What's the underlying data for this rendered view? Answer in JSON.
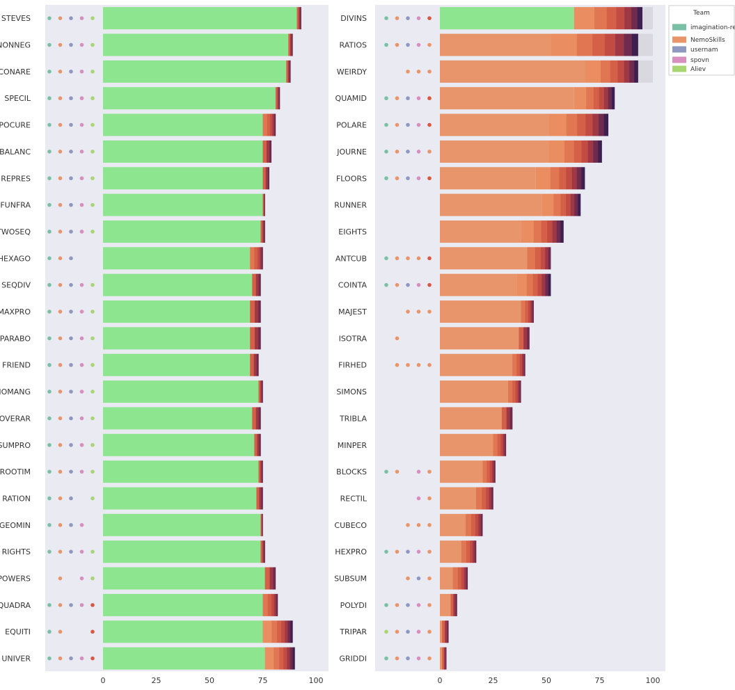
{
  "legend": {
    "title": "Team",
    "entries": [
      {
        "name": "imagination-research",
        "color": "#7bbfa5"
      },
      {
        "name": "NemoSkills",
        "color": "#e8956b"
      },
      {
        "name": "usernam",
        "color": "#8e98c1"
      },
      {
        "name": "spovn",
        "color": "#d78fbf"
      },
      {
        "name": "Aliev",
        "color": "#a8d672"
      }
    ]
  },
  "chart_data": [
    {
      "type": "bar",
      "orientation": "horizontal",
      "stacked": true,
      "xlim": [
        0,
        100
      ],
      "xticks": [
        0,
        25,
        50,
        75,
        100
      ],
      "grid": false,
      "base_color": "#8ee590",
      "categories": [
        "STEVES",
        "NONNEG",
        "CONARE",
        "SPECIL",
        "POCURE",
        "BALANC",
        "REPRES",
        "FUNFRA",
        "TWOSEQ",
        "HEXAGO",
        "SEQDIV",
        "MAXPRO",
        "PARABO",
        "FRIEND",
        "NOMANG",
        "OVERAR",
        "SUMPRO",
        "ROOTIM",
        "RATION",
        "GEOMIN",
        "RIGHTS",
        "POWERS",
        "QUADRA",
        "EQUITI",
        "UNIVER"
      ],
      "base_values": [
        91,
        87,
        86,
        81,
        75,
        75,
        75,
        75,
        74,
        69,
        70,
        69,
        69,
        69,
        73,
        70,
        71,
        73,
        72,
        74,
        74,
        76,
        75,
        75,
        76
      ],
      "totals": [
        93,
        89,
        88,
        83,
        81,
        79,
        78,
        76,
        76,
        75,
        74,
        74,
        74,
        73,
        75,
        74,
        74,
        75,
        75,
        75,
        76,
        81,
        82,
        89,
        90
      ],
      "dots": [
        [
          "g",
          "o",
          "b",
          "p",
          "y"
        ],
        [
          "g",
          "o",
          "b",
          "p",
          "y"
        ],
        [
          "g",
          "o",
          "b",
          "p",
          "y"
        ],
        [
          "g",
          "o",
          "b",
          "p",
          "y"
        ],
        [
          "g",
          "o",
          "b",
          "p",
          "y"
        ],
        [
          "g",
          "o",
          "b",
          "p",
          "y"
        ],
        [
          "g",
          "o",
          "b",
          "p",
          "y"
        ],
        [
          "g",
          "o",
          "b",
          "p",
          "y"
        ],
        [
          "g",
          "o",
          "b",
          "p",
          "y"
        ],
        [
          "g",
          "o",
          "b"
        ],
        [
          "g",
          "o",
          "b",
          "p",
          "y"
        ],
        [
          "g",
          "o",
          "b",
          "p",
          "y"
        ],
        [
          "g",
          "o",
          "b",
          "p",
          "y"
        ],
        [
          "g",
          "o",
          "b",
          "p",
          "y"
        ],
        [
          "g",
          "o",
          "b",
          "p",
          "y"
        ],
        [
          "g",
          "o",
          "b",
          "p",
          "y"
        ],
        [
          "g",
          "o",
          "b",
          "p",
          "y"
        ],
        [
          "g",
          "o",
          "b",
          "p",
          "y"
        ],
        [
          "g",
          "o",
          "b",
          "",
          "y"
        ],
        [
          "g",
          "o",
          "b",
          "p"
        ],
        [
          "g",
          "o",
          "b",
          "p",
          "y"
        ],
        [
          "",
          "o",
          "",
          "p",
          "y"
        ],
        [
          "g",
          "o",
          "b",
          "p",
          "r"
        ],
        [
          "g",
          "o",
          "",
          "",
          "r"
        ],
        [
          "g",
          "o",
          "b",
          "p",
          "r"
        ]
      ]
    },
    {
      "type": "bar",
      "orientation": "horizontal",
      "stacked": true,
      "xlim": [
        0,
        100
      ],
      "xticks": [
        0,
        25,
        50,
        75,
        100
      ],
      "grid": false,
      "base_color": "#e8956b",
      "first_bar_base_color": "#8ee590",
      "categories": [
        "DIVINS",
        "RATIOS",
        "WEIRDY",
        "QUAMID",
        "POLARE",
        "JOURNE",
        "FLOORS",
        "RUNNER",
        "EIGHTS",
        "ANTCUB",
        "COINTA",
        "MAJEST",
        "ISOTRA",
        "FIRHED",
        "SIMONS",
        "TRIBLA",
        "MINPER",
        "BLOCKS",
        "RECTIL",
        "CUBECO",
        "HEXPRO",
        "SUBSUM",
        "POLYDI",
        "TRIPAR",
        "GRIDDI"
      ],
      "base_values": [
        63,
        52,
        68,
        63,
        51,
        51,
        45,
        48,
        38,
        41,
        36,
        38,
        37,
        34,
        32,
        29,
        25,
        20,
        17,
        12,
        10,
        6,
        5,
        1,
        1
      ],
      "totals": [
        95,
        93,
        93,
        82,
        79,
        76,
        68,
        66,
        58,
        52,
        52,
        44,
        42,
        40,
        38,
        34,
        31,
        26,
        25,
        20,
        17,
        13,
        8,
        4,
        3
      ],
      "dots": [
        [
          "g",
          "o",
          "b",
          "p",
          "r"
        ],
        [
          "g",
          "o",
          "b",
          "p",
          "o"
        ],
        [
          "",
          "",
          "o",
          "o",
          "o"
        ],
        [
          "g",
          "o",
          "b",
          "p",
          "r"
        ],
        [
          "g",
          "o",
          "b",
          "p",
          "r"
        ],
        [
          "g",
          "o",
          "b",
          "p",
          "o"
        ],
        [
          "g",
          "o",
          "b",
          "p",
          "r"
        ],
        [
          "",
          "",
          "",
          "",
          ""
        ],
        [
          "",
          "",
          "",
          "",
          ""
        ],
        [
          "g",
          "o",
          "o",
          "o",
          "r"
        ],
        [
          "g",
          "o",
          "b",
          "p",
          "r"
        ],
        [
          "",
          "",
          "o",
          "o",
          "o"
        ],
        [
          "",
          "o",
          "",
          "",
          ""
        ],
        [
          "",
          "o",
          "o",
          "o",
          "o"
        ],
        [
          "",
          "",
          "",
          "",
          ""
        ],
        [
          "",
          "",
          "",
          "",
          ""
        ],
        [
          "",
          "",
          "",
          "",
          ""
        ],
        [
          "g",
          "o",
          "",
          "p",
          "o"
        ],
        [
          "",
          "",
          "",
          "p",
          "o"
        ],
        [
          "",
          "",
          "o",
          "o",
          "o"
        ],
        [
          "g",
          "o",
          "b",
          "p",
          "o"
        ],
        [
          "",
          "",
          "o",
          "b",
          "o"
        ],
        [
          "g",
          "o",
          "b",
          "p",
          "o"
        ],
        [
          "y",
          "o",
          "b",
          "p",
          "o"
        ],
        [
          "g",
          "o",
          "b",
          "p",
          "o"
        ]
      ]
    }
  ]
}
